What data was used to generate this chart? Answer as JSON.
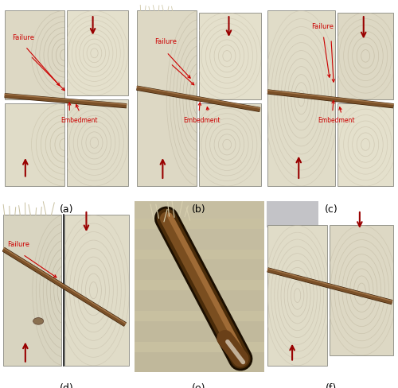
{
  "figure_size": [
    5.0,
    4.89
  ],
  "dpi": 100,
  "nrows": 2,
  "ncols": 3,
  "labels": [
    "(a)",
    "(b)",
    "(c)",
    "(d)",
    "(e)",
    "(f)"
  ],
  "label_fontsize": 9,
  "background_color": "#ffffff",
  "panel_bg": "#2a2a2a",
  "wood_light": "#e8dfc8",
  "wood_medium": "#d4c8a8",
  "wood_ring": "#c8bca0",
  "wood_ring_dark": "#b8aa8c",
  "nail_color": "#5a3d1e",
  "nail_shadow": "#2a1800",
  "arrow_color": "#990000",
  "failure_color": "#cc0000",
  "label_color": "#000000",
  "panel_e_bg": "#c8c0a0"
}
